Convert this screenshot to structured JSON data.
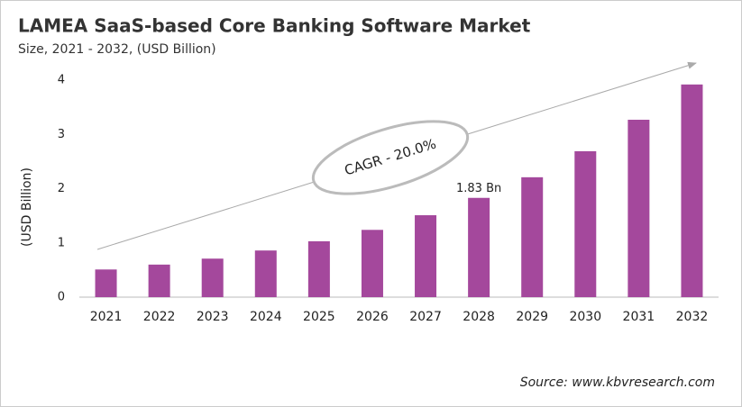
{
  "chart_data": {
    "type": "bar",
    "title": "LAMEA SaaS-based Core Banking Software Market",
    "subtitle": "Size, 2021 - 2032, (USD Billion)",
    "y_label": "(USD Billion)",
    "annotation": "CAGR - 20.0%",
    "source": "Source: www.kbvresearch.com",
    "categories": [
      "2021",
      "2022",
      "2023",
      "2024",
      "2025",
      "2026",
      "2027",
      "2028",
      "2029",
      "2030",
      "2031",
      "2032"
    ],
    "values": [
      0.51,
      0.6,
      0.71,
      0.86,
      1.03,
      1.24,
      1.51,
      1.83,
      2.21,
      2.69,
      3.27,
      3.92
    ],
    "value_labels": [
      null,
      null,
      null,
      null,
      null,
      null,
      null,
      "1.83 Bn",
      null,
      null,
      null,
      null
    ],
    "color": "#a4489c",
    "ylim": [
      0,
      4
    ],
    "yticks": [
      0,
      1,
      2,
      3,
      4
    ],
    "grid": false
  }
}
